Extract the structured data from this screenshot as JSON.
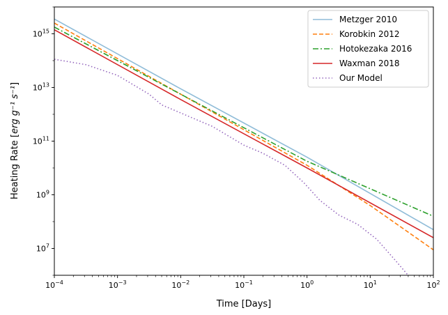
{
  "chart_data": {
    "type": "line",
    "xlabel": "Time [Days]",
    "ylabel_prefix": "Heating Rate [",
    "ylabel_suffix": "]",
    "ylabel_math": "erg g⁻¹ s⁻¹",
    "xscale": "log",
    "yscale": "log",
    "xlim": [
      0.0001,
      100
    ],
    "ylim": [
      1000000,
      100000000000000000
    ],
    "ylim_log10": [
      6.0,
      16.0
    ],
    "x_ticks": [
      {
        "base": "10",
        "exp": "−4",
        "value": 0.0001
      },
      {
        "base": "10",
        "exp": "−3",
        "value": 0.001
      },
      {
        "base": "10",
        "exp": "−2",
        "value": 0.01
      },
      {
        "base": "10",
        "exp": "−1",
        "value": 0.1
      },
      {
        "base": "10",
        "exp": "0",
        "value": 1
      },
      {
        "base": "10",
        "exp": "1",
        "value": 10
      },
      {
        "base": "10",
        "exp": "2",
        "value": 100
      }
    ],
    "y_ticks": [
      {
        "base": "10",
        "exp": "7",
        "value": 10000000
      },
      {
        "base": "10",
        "exp": "9",
        "value": 1000000000
      },
      {
        "base": "10",
        "exp": "11",
        "value": 100000000000
      },
      {
        "base": "10",
        "exp": "13",
        "value": 10000000000000
      },
      {
        "base": "10",
        "exp": "15",
        "value": 1000000000000000
      }
    ],
    "legend_position": "top-right",
    "series": [
      {
        "name": "Metzger 2010",
        "color": "#8fbcd8",
        "dash": "solid",
        "log10_x": [
          -4,
          -2,
          0,
          2
        ],
        "log10_y": [
          15.55,
          12.95,
          10.4,
          7.7
        ]
      },
      {
        "name": "Korobkin 2012",
        "color": "#ff7f0e",
        "dash": "dashed",
        "log10_x": [
          -4,
          -2,
          0,
          1,
          2
        ],
        "log10_y": [
          15.4,
          12.75,
          10.1,
          8.6,
          6.95
        ]
      },
      {
        "name": "Hotokezaka 2016",
        "color": "#2ca02c",
        "dash": "dashdot",
        "log10_x": [
          -4,
          -2,
          0,
          2
        ],
        "log10_y": [
          15.25,
          12.75,
          10.25,
          8.2
        ]
      },
      {
        "name": "Waxman 2018",
        "color": "#d62728",
        "dash": "solid",
        "log10_x": [
          -4,
          -2,
          0,
          2
        ],
        "log10_y": [
          15.15,
          12.55,
          10.0,
          7.4
        ]
      },
      {
        "name": "Our Model",
        "color": "#9467bd",
        "dash": "dotted",
        "log10_x": [
          -4,
          -3.5,
          -3,
          -2.5,
          -2.3,
          -2,
          -1.5,
          -1,
          -0.7,
          -0.35,
          -0.05,
          0.2,
          0.5,
          0.8,
          1.1,
          1.4,
          1.6
        ],
        "log10_y": [
          14.05,
          13.85,
          13.45,
          12.75,
          12.35,
          12.05,
          11.55,
          10.85,
          10.55,
          10.1,
          9.45,
          8.8,
          8.25,
          7.9,
          7.35,
          6.55,
          6.0
        ]
      }
    ]
  }
}
